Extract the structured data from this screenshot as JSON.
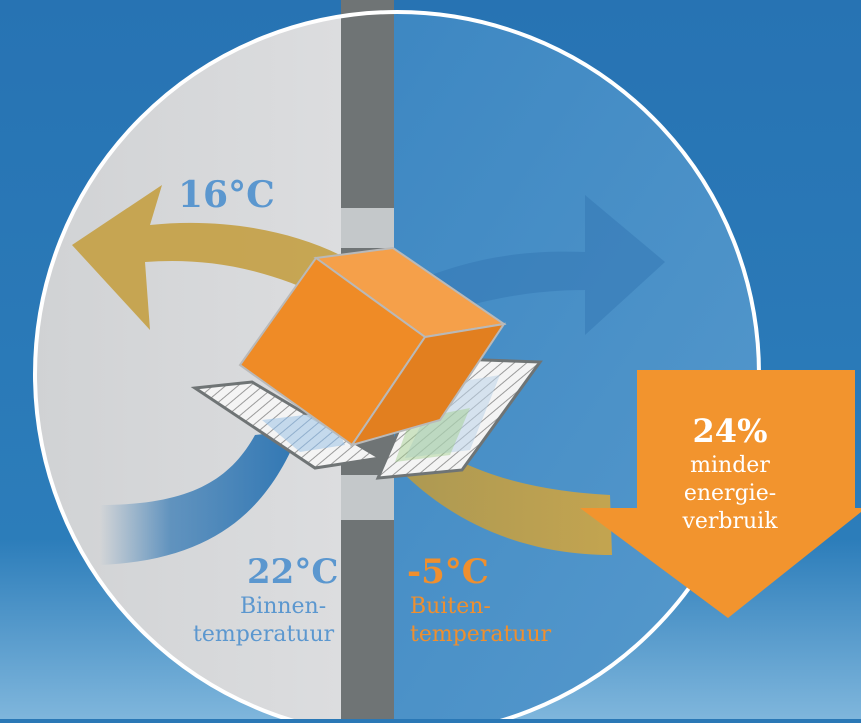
{
  "labels": {
    "top_temp": "16°C",
    "inside_temp": "22°C",
    "inside_line1": "Binnen-",
    "inside_line2": "temperatuur",
    "outside_temp": "-5°C",
    "outside_line1": "Buiten-",
    "outside_line2": "temperatuur",
    "savings_value": "24%",
    "savings_line1": "minder",
    "savings_line2": "energie-",
    "savings_line3": "verbruik"
  },
  "colors": {
    "background": "#2a78b6",
    "inside": "#d9dadb",
    "outside": "#3c87c1",
    "wall": "#6f7475",
    "warm_arrow": "#c9a54a",
    "cold_arrow": "#2f76b3",
    "cube": "#f28f2c",
    "savings_arrow": "#f2942e"
  }
}
